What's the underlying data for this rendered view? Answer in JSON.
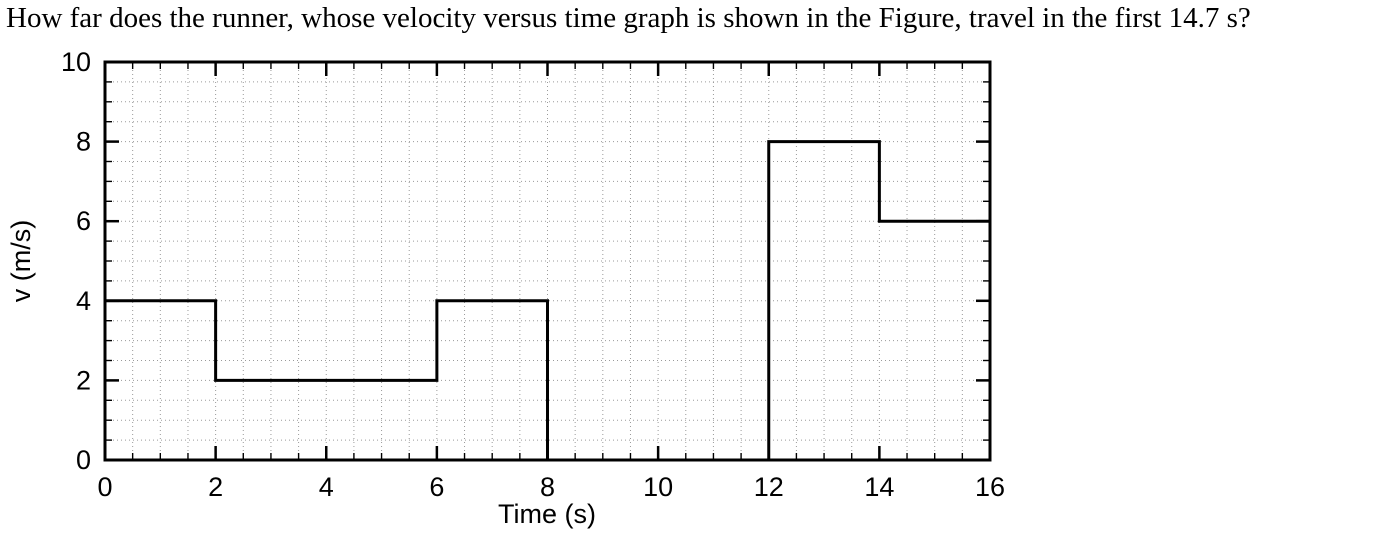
{
  "question": {
    "text": "How far does the runner, whose velocity versus time graph is shown in the Figure, travel in the first 14.7 s?"
  },
  "chart_data": {
    "type": "line",
    "subtype": "step",
    "title": "",
    "xlabel": "Time (s)",
    "ylabel": "v (m/s)",
    "xlim": [
      0,
      16
    ],
    "ylim": [
      0,
      10
    ],
    "x_major_ticks": [
      0,
      2,
      4,
      6,
      8,
      10,
      12,
      14,
      16
    ],
    "y_major_ticks": [
      0,
      2,
      4,
      6,
      8,
      10
    ],
    "x_minor_step": 0.5,
    "y_minor_step": 0.5,
    "grid": "minor-dotted",
    "line_color": "#000000",
    "segments": [
      {
        "t_start": 0,
        "t_end": 2,
        "v": 4
      },
      {
        "t_start": 2,
        "t_end": 6,
        "v": 2
      },
      {
        "t_start": 6,
        "t_end": 8,
        "v": 4
      },
      {
        "t_start": 8,
        "t_end": 12,
        "v": 0
      },
      {
        "t_start": 12,
        "t_end": 14,
        "v": 8
      },
      {
        "t_start": 14,
        "t_end": 16,
        "v": 6
      }
    ]
  }
}
